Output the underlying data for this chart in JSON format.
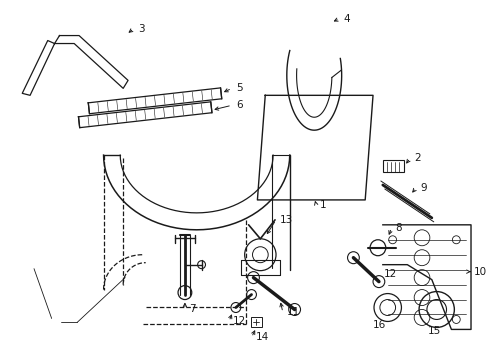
{
  "background_color": "#ffffff",
  "line_color": "#1a1a1a",
  "figsize": [
    4.89,
    3.6
  ],
  "dpi": 100,
  "label_fontsize": 7.5
}
